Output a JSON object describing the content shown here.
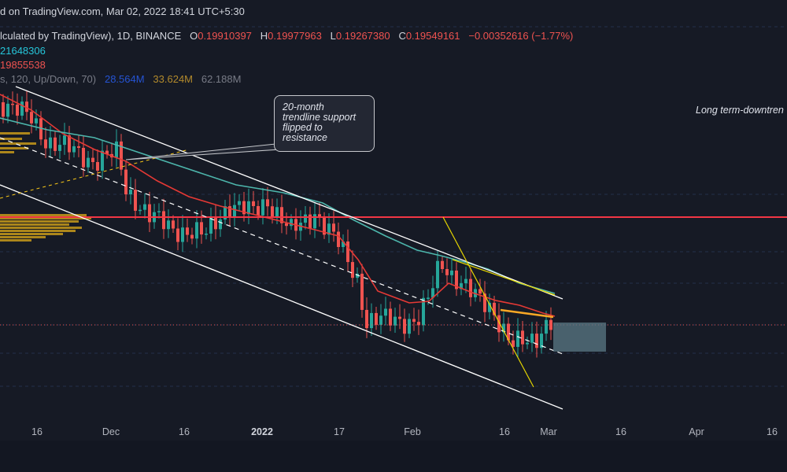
{
  "header": {
    "published": "d on TradingView.com, Mar 02, 2022 18:41 UTC+5:30",
    "symbol_text": "lculated by TradingView), 1D, BINANCE",
    "ohlc": {
      "o_label": "O",
      "o_value": "0.19910397",
      "h_label": "H",
      "h_value": "0.19977963",
      "l_label": "L",
      "l_value": "0.19267380",
      "c_label": "C",
      "c_value": "0.19549161",
      "change": "−0.00352616 (−1.77%)"
    },
    "indicator1_value": "21648306",
    "indicator2_value": "19855538",
    "volume_profile": {
      "label": "s, 120, Up/Down, 70)",
      "up": "28.564M",
      "down": "33.624M",
      "total": "62.188M"
    }
  },
  "annotations": {
    "callout_lines": [
      "20-month",
      "trendline support",
      "flipped to",
      "resistance"
    ],
    "long_term_note": "Long term-downtren"
  },
  "x_axis": {
    "labels": [
      "16",
      "Dec",
      "16",
      "2022",
      "17",
      "Feb",
      "16",
      "Mar",
      "16",
      "Apr",
      "16"
    ]
  },
  "colors": {
    "background": "#161a25",
    "up_candle": "#26a69a",
    "down_candle": "#ef5350",
    "ema_red": "#e53935",
    "ema_teal": "#4db6ac",
    "resistance": "#f23645",
    "channel": "#ffffff",
    "wedge": "#e6d600",
    "volume_profile": "#c79a1a",
    "target_box": "#5b7a86"
  }
}
